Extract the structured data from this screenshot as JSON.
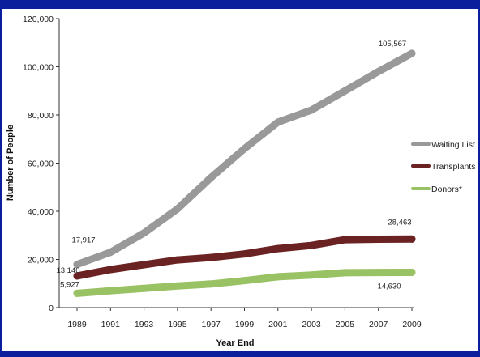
{
  "chart_data": {
    "type": "line",
    "xlabel": "Year End",
    "ylabel": "Number of People",
    "ylim": [
      0,
      120000
    ],
    "yticks": [
      0,
      20000,
      40000,
      60000,
      80000,
      100000,
      120000
    ],
    "ytick_labels": [
      "0",
      "20,000",
      "40,000",
      "60,000",
      "80,000",
      "100,000",
      "120,000"
    ],
    "x": [
      1989,
      1991,
      1993,
      1995,
      1997,
      1999,
      2001,
      2003,
      2005,
      2007,
      2009
    ],
    "x_labels": [
      "1989",
      "1991",
      "1993",
      "1995",
      "1997",
      "1999",
      "2001",
      "2003",
      "2005",
      "2007",
      "2009"
    ],
    "grid": false,
    "legend_position": "right",
    "series": [
      {
        "name": "Waiting List",
        "color": "#999999",
        "values": [
          17917,
          23000,
          31000,
          41000,
          54000,
          66000,
          77000,
          82000,
          90000,
          98000,
          105567
        ]
      },
      {
        "name": "Transplants",
        "color": "#6b2222",
        "values": [
          13140,
          15800,
          17800,
          19800,
          20800,
          22300,
          24500,
          25800,
          28200,
          28400,
          28463
        ]
      },
      {
        "name": "Donors*",
        "color": "#99c264",
        "values": [
          5927,
          7000,
          8000,
          9000,
          9800,
          11200,
          12800,
          13500,
          14500,
          14600,
          14630
        ]
      }
    ],
    "annotations": [
      {
        "text": "17,917",
        "series": 0,
        "point": 0
      },
      {
        "text": "105,567",
        "series": 0,
        "point": 10
      },
      {
        "text": "13,140",
        "series": 1,
        "point": 0
      },
      {
        "text": "28,463",
        "series": 1,
        "point": 10
      },
      {
        "text": "5,927",
        "series": 2,
        "point": 0
      },
      {
        "text": "14,630",
        "series": 2,
        "point": 10
      }
    ]
  }
}
